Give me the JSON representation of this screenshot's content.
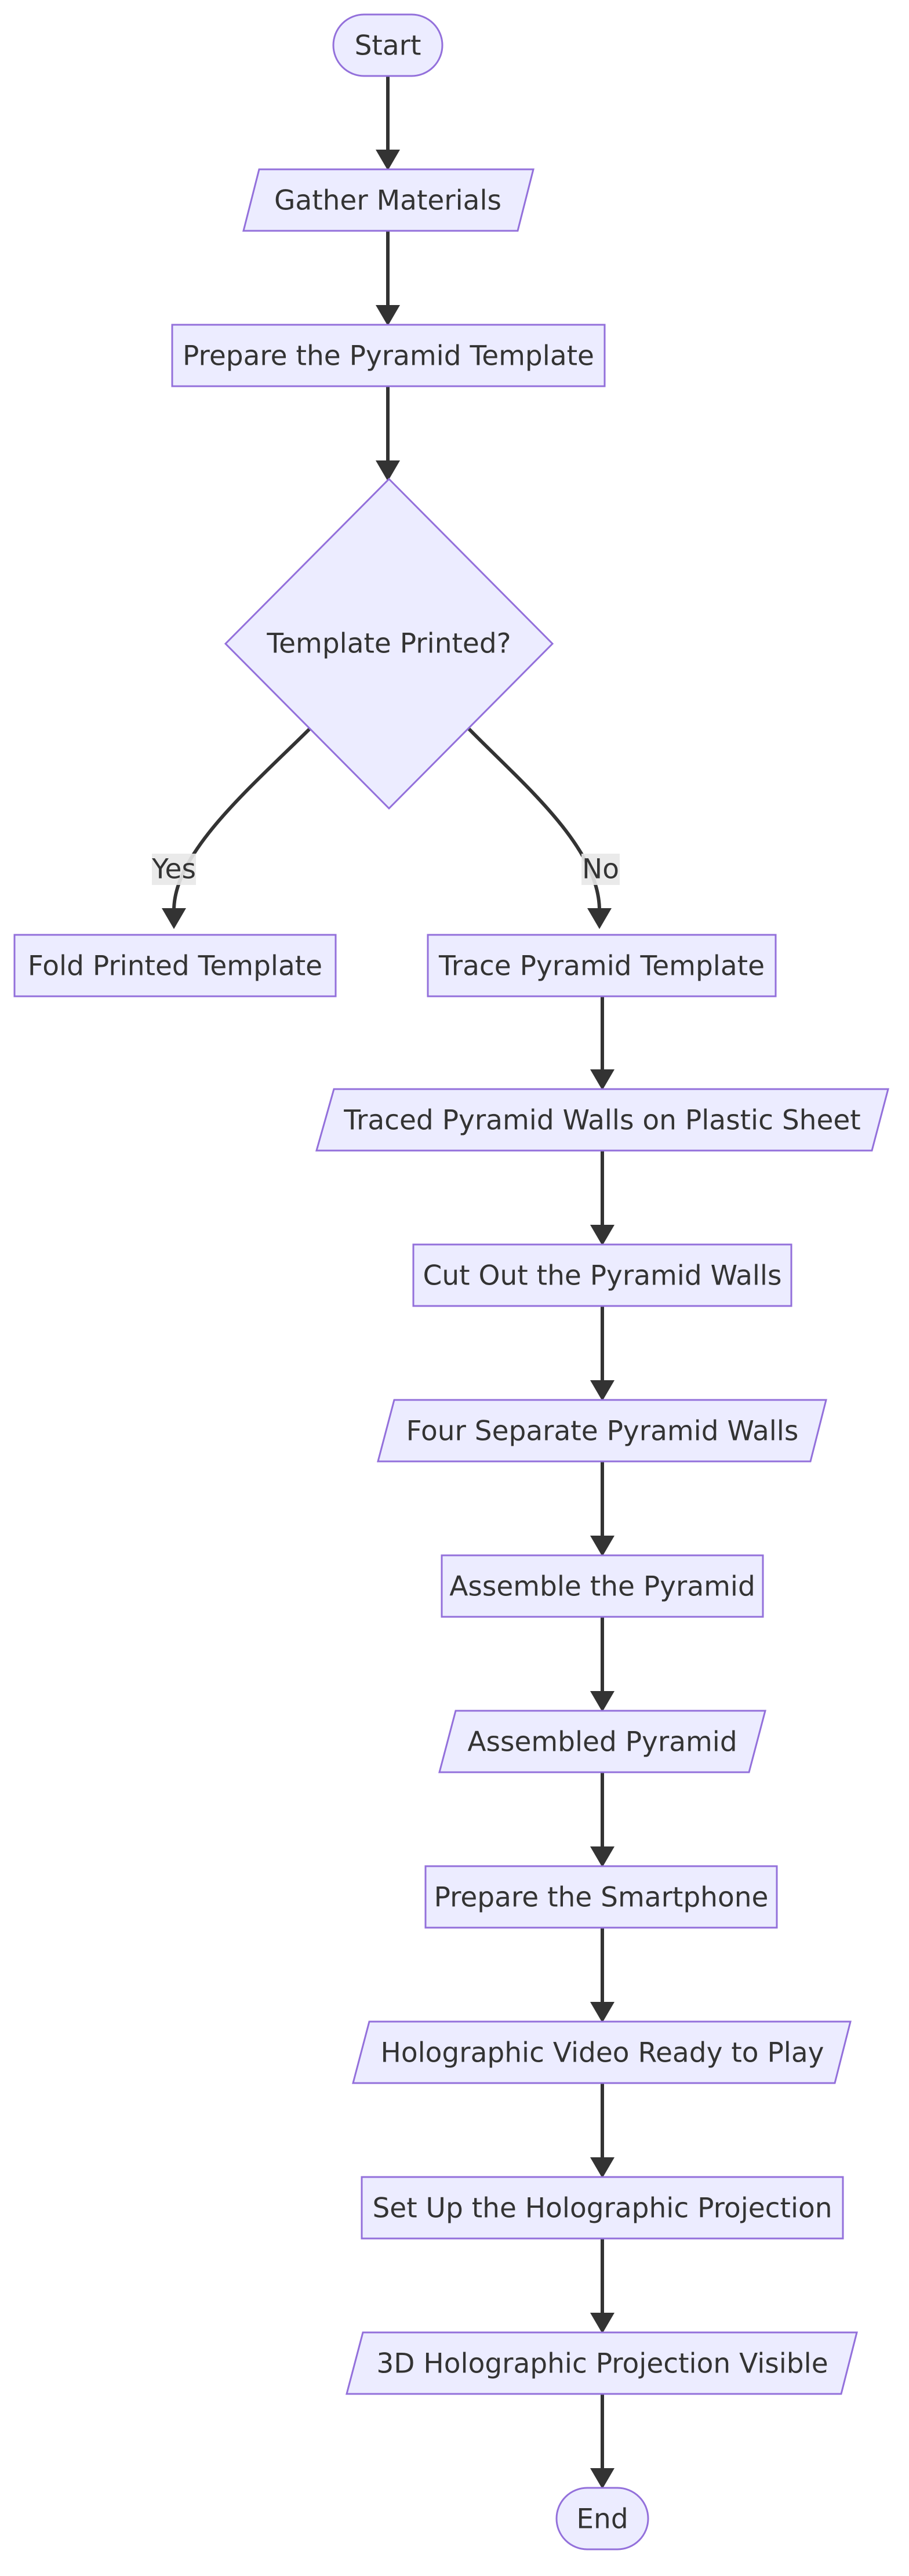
{
  "nodes": {
    "start": "Start",
    "gather": "Gather Materials",
    "prepare_template": "Prepare the Pyramid Template",
    "decision": "Template Printed?",
    "fold": "Fold Printed Template",
    "trace": "Trace Pyramid Template",
    "traced_walls": "Traced Pyramid Walls on Plastic Sheet",
    "cut": "Cut Out the Pyramid Walls",
    "four_walls": "Four Separate Pyramid Walls",
    "assemble": "Assemble the Pyramid",
    "assembled": "Assembled Pyramid",
    "prepare_phone": "Prepare the Smartphone",
    "video_ready": "Holographic Video Ready to Play",
    "setup_projection": "Set Up the Holographic Projection",
    "projection_visible": "3D Holographic Projection Visible",
    "end": "End"
  },
  "edge_labels": {
    "yes": "Yes",
    "no": "No"
  },
  "colors": {
    "node_fill": "#ECECFF",
    "node_stroke": "#9370DB",
    "edge": "#333333",
    "text": "#333333",
    "edge_label_bg": "#e8e8e8"
  }
}
